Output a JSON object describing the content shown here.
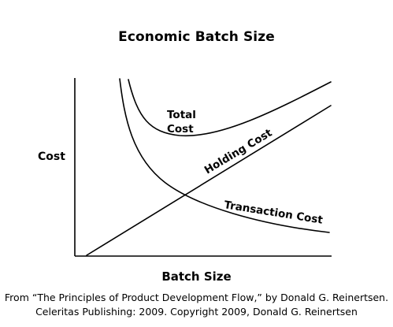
{
  "title": "Economic Batch Size",
  "axes": {
    "y_label": "Cost",
    "x_label": "Batch Size"
  },
  "curves": {
    "total_cost_line1": "Total",
    "total_cost_line2": "Cost",
    "holding_cost": "Holding Cost",
    "transaction_cost": "Transaction Cost"
  },
  "credit": {
    "line1": "From “The Principles of Product Development Flow,” by Donald G. Reinertsen.",
    "line2": "Celeritas Publishing: 2009. Copyright 2009, Donald G. Reinertsen"
  }
}
